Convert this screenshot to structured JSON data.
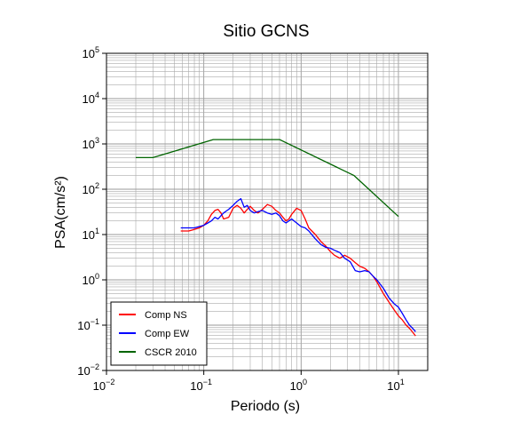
{
  "chart_data": {
    "type": "line",
    "title": "Sitio GCNS",
    "xlabel": "Periodo (s)",
    "ylabel": "PSA(cm/s²)",
    "x_scale": "log",
    "y_scale": "log",
    "xlim": [
      0.01,
      20
    ],
    "ylim": [
      0.01,
      100000
    ],
    "x_ticks": [
      {
        "value": 0.01,
        "mantissa": "10",
        "exp": "−2"
      },
      {
        "value": 0.1,
        "mantissa": "10",
        "exp": "−1"
      },
      {
        "value": 1,
        "mantissa": "10",
        "exp": "0"
      },
      {
        "value": 10,
        "mantissa": "10",
        "exp": "1"
      }
    ],
    "y_ticks": [
      {
        "value": 0.01,
        "mantissa": "10",
        "exp": "−2"
      },
      {
        "value": 0.1,
        "mantissa": "10",
        "exp": "−1"
      },
      {
        "value": 1,
        "mantissa": "10",
        "exp": "0"
      },
      {
        "value": 10,
        "mantissa": "10",
        "exp": "1"
      },
      {
        "value": 100,
        "mantissa": "10",
        "exp": "2"
      },
      {
        "value": 1000,
        "mantissa": "10",
        "exp": "3"
      },
      {
        "value": 10000,
        "mantissa": "10",
        "exp": "4"
      },
      {
        "value": 100000,
        "mantissa": "10",
        "exp": "5"
      }
    ],
    "grid": true,
    "legend_position": "bottom-left",
    "series": [
      {
        "name": "Comp NS",
        "color": "#ff0000",
        "x": [
          0.058,
          0.07,
          0.08,
          0.09,
          0.1,
          0.11,
          0.12,
          0.13,
          0.14,
          0.15,
          0.16,
          0.18,
          0.2,
          0.22,
          0.24,
          0.26,
          0.28,
          0.3,
          0.33,
          0.36,
          0.4,
          0.45,
          0.5,
          0.55,
          0.6,
          0.65,
          0.7,
          0.75,
          0.8,
          0.9,
          1.0,
          1.1,
          1.2,
          1.4,
          1.6,
          1.8,
          2.0,
          2.2,
          2.5,
          2.8,
          3.2,
          3.6,
          4.0,
          4.5,
          5.0,
          5.5,
          6.0,
          7.0,
          8.0,
          9.0,
          10.0,
          11.0,
          12.0,
          13.0,
          14.0,
          15.0
        ],
        "y": [
          12,
          12,
          13,
          14,
          16,
          20,
          28,
          34,
          36,
          30,
          22,
          24,
          38,
          44,
          38,
          30,
          36,
          42,
          34,
          30,
          36,
          46,
          42,
          34,
          30,
          24,
          20,
          22,
          28,
          38,
          34,
          22,
          14,
          10,
          7,
          5.5,
          4.2,
          3.5,
          3.0,
          3.5,
          3.0,
          2.4,
          2.0,
          1.8,
          1.5,
          1.2,
          0.9,
          0.5,
          0.32,
          0.22,
          0.16,
          0.13,
          0.1,
          0.085,
          0.07,
          0.058
        ]
      },
      {
        "name": "Comp EW",
        "color": "#0000ff",
        "x": [
          0.058,
          0.07,
          0.08,
          0.09,
          0.1,
          0.11,
          0.12,
          0.13,
          0.14,
          0.15,
          0.16,
          0.18,
          0.2,
          0.22,
          0.24,
          0.26,
          0.28,
          0.3,
          0.33,
          0.36,
          0.4,
          0.45,
          0.5,
          0.55,
          0.6,
          0.65,
          0.7,
          0.75,
          0.8,
          0.9,
          1.0,
          1.1,
          1.2,
          1.4,
          1.6,
          1.8,
          2.0,
          2.2,
          2.5,
          2.8,
          3.2,
          3.6,
          4.0,
          4.5,
          5.0,
          5.5,
          6.0,
          7.0,
          8.0,
          9.0,
          10.0,
          11.0,
          12.0,
          13.0,
          14.0,
          15.0
        ],
        "y": [
          14,
          14,
          14,
          15,
          16,
          18,
          20,
          24,
          22,
          26,
          30,
          36,
          44,
          54,
          62,
          40,
          44,
          34,
          30,
          32,
          34,
          30,
          28,
          30,
          26,
          20,
          18,
          20,
          22,
          18,
          15,
          14,
          12,
          8,
          6,
          5.2,
          5.0,
          4.5,
          4.0,
          3.0,
          2.5,
          1.6,
          1.5,
          1.6,
          1.5,
          1.2,
          1.0,
          0.65,
          0.4,
          0.3,
          0.25,
          0.18,
          0.13,
          0.1,
          0.085,
          0.072
        ]
      },
      {
        "name": "CSCR 2010",
        "color": "#006400",
        "x": [
          0.02,
          0.03,
          0.125,
          0.6,
          3.5,
          10
        ],
        "y": [
          500,
          500,
          1250,
          1250,
          200,
          25
        ]
      }
    ]
  }
}
